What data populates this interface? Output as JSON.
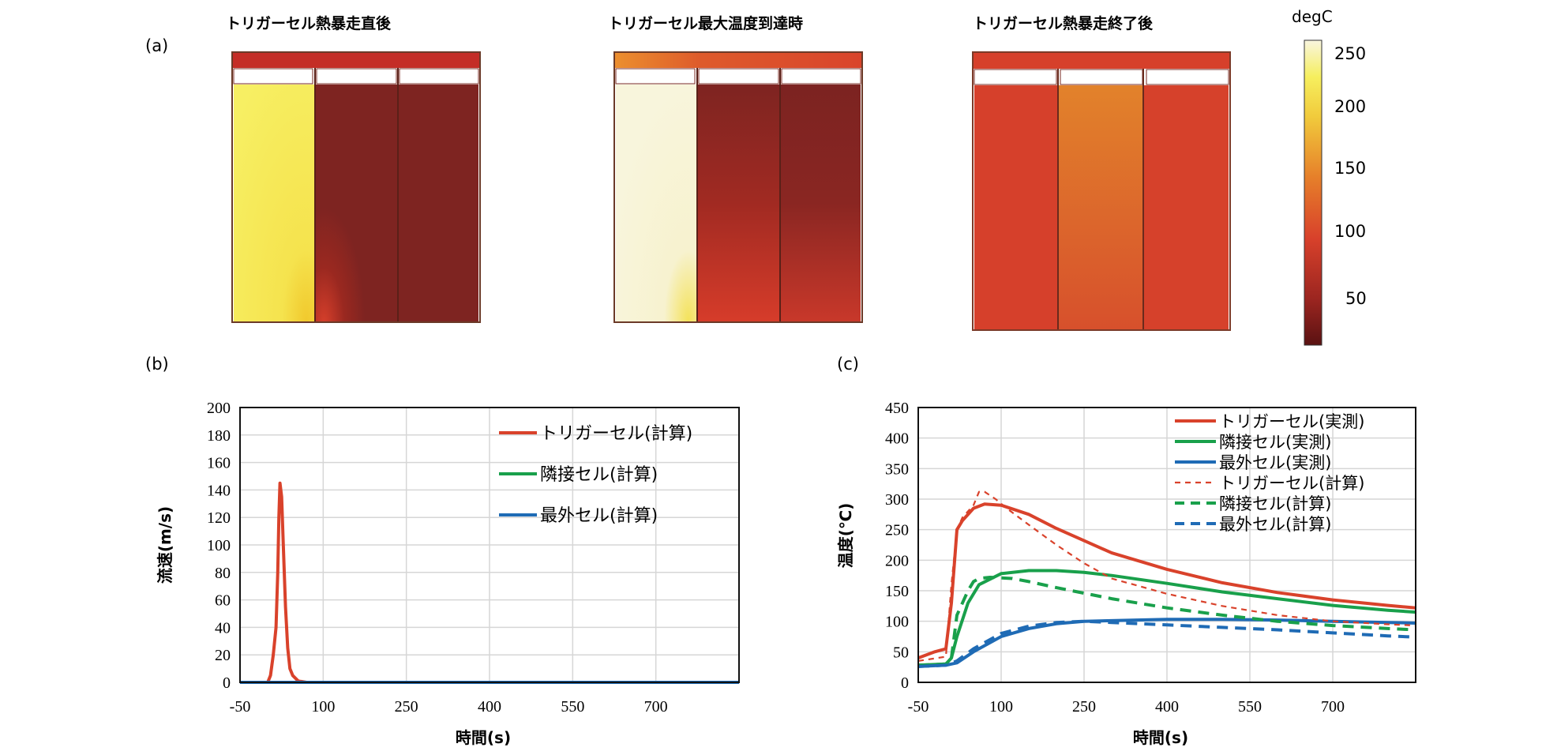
{
  "panel_labels": {
    "a": "(a)",
    "b": "(b)",
    "c": "(c)"
  },
  "heatmaps": [
    {
      "title": "トリガーセル熱暴走直後"
    },
    {
      "title": "トリガーセル最大温度到達時"
    },
    {
      "title": "トリガーセル熱暴走終了後"
    }
  ],
  "colorbar": {
    "title": "degC",
    "ticks": [
      "250",
      "200",
      "150",
      "100",
      "50"
    ]
  },
  "chart_data": [
    {
      "type": "line",
      "title": "",
      "xlabel": "時間(s)",
      "ylabel": "流速(m/s)",
      "xlim": [
        -50,
        850
      ],
      "ylim": [
        0,
        200
      ],
      "xticks": [
        "-50",
        "100",
        "250",
        "400",
        "550",
        "700"
      ],
      "yticks": [
        "200",
        "180",
        "160",
        "140",
        "120",
        "100",
        "80",
        "60",
        "40",
        "20",
        "0"
      ],
      "grid": true,
      "legend_position": "top-right",
      "series": [
        {
          "name": "トリガーセル(計算)",
          "color": "#d9422b",
          "style": "solid",
          "x": [
            -50,
            0,
            5,
            10,
            15,
            18,
            20,
            22,
            25,
            28,
            32,
            36,
            40,
            45,
            55,
            70,
            100,
            850
          ],
          "y": [
            0,
            0,
            5,
            20,
            40,
            80,
            120,
            145,
            135,
            100,
            55,
            25,
            10,
            5,
            1,
            0,
            0,
            0
          ]
        },
        {
          "name": "隣接セル(計算)",
          "color": "#19a04b",
          "style": "solid",
          "x": [
            -50,
            850
          ],
          "y": [
            0,
            0
          ]
        },
        {
          "name": "最外セル(計算)",
          "color": "#1f6bb5",
          "style": "solid",
          "x": [
            -50,
            850
          ],
          "y": [
            0,
            0
          ]
        }
      ]
    },
    {
      "type": "line",
      "title": "",
      "xlabel": "時間(s)",
      "ylabel": "温度(℃)",
      "xlim": [
        -50,
        850
      ],
      "ylim": [
        0,
        450
      ],
      "xticks": [
        "-50",
        "100",
        "250",
        "400",
        "550",
        "700"
      ],
      "yticks": [
        "450",
        "400",
        "350",
        "300",
        "250",
        "200",
        "150",
        "100",
        "50",
        "0"
      ],
      "grid": true,
      "legend_position": "top-right",
      "series": [
        {
          "name": "トリガーセル(実測)",
          "color": "#d9422b",
          "style": "solid",
          "x": [
            -50,
            -20,
            0,
            10,
            20,
            30,
            50,
            70,
            100,
            150,
            200,
            250,
            300,
            400,
            500,
            600,
            700,
            800,
            850
          ],
          "y": [
            40,
            50,
            55,
            130,
            250,
            265,
            285,
            292,
            290,
            275,
            252,
            232,
            212,
            185,
            163,
            147,
            135,
            126,
            122
          ]
        },
        {
          "name": "隣接セル(実測)",
          "color": "#19a04b",
          "style": "solid",
          "x": [
            -50,
            0,
            10,
            20,
            40,
            60,
            100,
            150,
            200,
            250,
            300,
            400,
            500,
            600,
            700,
            800,
            850
          ],
          "y": [
            28,
            30,
            40,
            75,
            130,
            160,
            178,
            183,
            183,
            180,
            175,
            162,
            148,
            137,
            126,
            118,
            115
          ]
        },
        {
          "name": "最外セル(実測)",
          "color": "#1f6bb5",
          "style": "solid",
          "x": [
            -50,
            0,
            20,
            50,
            100,
            150,
            200,
            250,
            300,
            400,
            500,
            600,
            700,
            800,
            850
          ],
          "y": [
            26,
            28,
            32,
            50,
            75,
            88,
            96,
            100,
            101,
            103,
            103,
            102,
            100,
            98,
            97
          ]
        },
        {
          "name": "トリガーセル(計算)",
          "color": "#d9422b",
          "style": "dashed",
          "x": [
            -50,
            0,
            10,
            20,
            30,
            50,
            60,
            70,
            90,
            110,
            150,
            200,
            250,
            300,
            400,
            500,
            600,
            700,
            800,
            850
          ],
          "y": [
            35,
            42,
            160,
            250,
            270,
            290,
            312,
            312,
            300,
            285,
            258,
            225,
            195,
            170,
            145,
            125,
            110,
            100,
            95,
            93
          ]
        },
        {
          "name": "隣接セル(計算)",
          "color": "#19a04b",
          "style": "dashed",
          "x": [
            -50,
            0,
            10,
            20,
            40,
            50,
            60,
            80,
            120,
            150,
            200,
            250,
            300,
            400,
            500,
            600,
            700,
            800,
            850
          ],
          "y": [
            28,
            30,
            40,
            110,
            150,
            165,
            170,
            172,
            170,
            165,
            155,
            146,
            137,
            122,
            110,
            100,
            93,
            88,
            86
          ]
        },
        {
          "name": "最外セル(計算)",
          "color": "#1f6bb5",
          "style": "dashed",
          "x": [
            -50,
            0,
            20,
            50,
            100,
            150,
            200,
            250,
            300,
            400,
            500,
            600,
            700,
            800,
            850
          ],
          "y": [
            26,
            28,
            35,
            55,
            80,
            92,
            98,
            100,
            98,
            94,
            90,
            86,
            81,
            76,
            74
          ]
        }
      ]
    }
  ]
}
